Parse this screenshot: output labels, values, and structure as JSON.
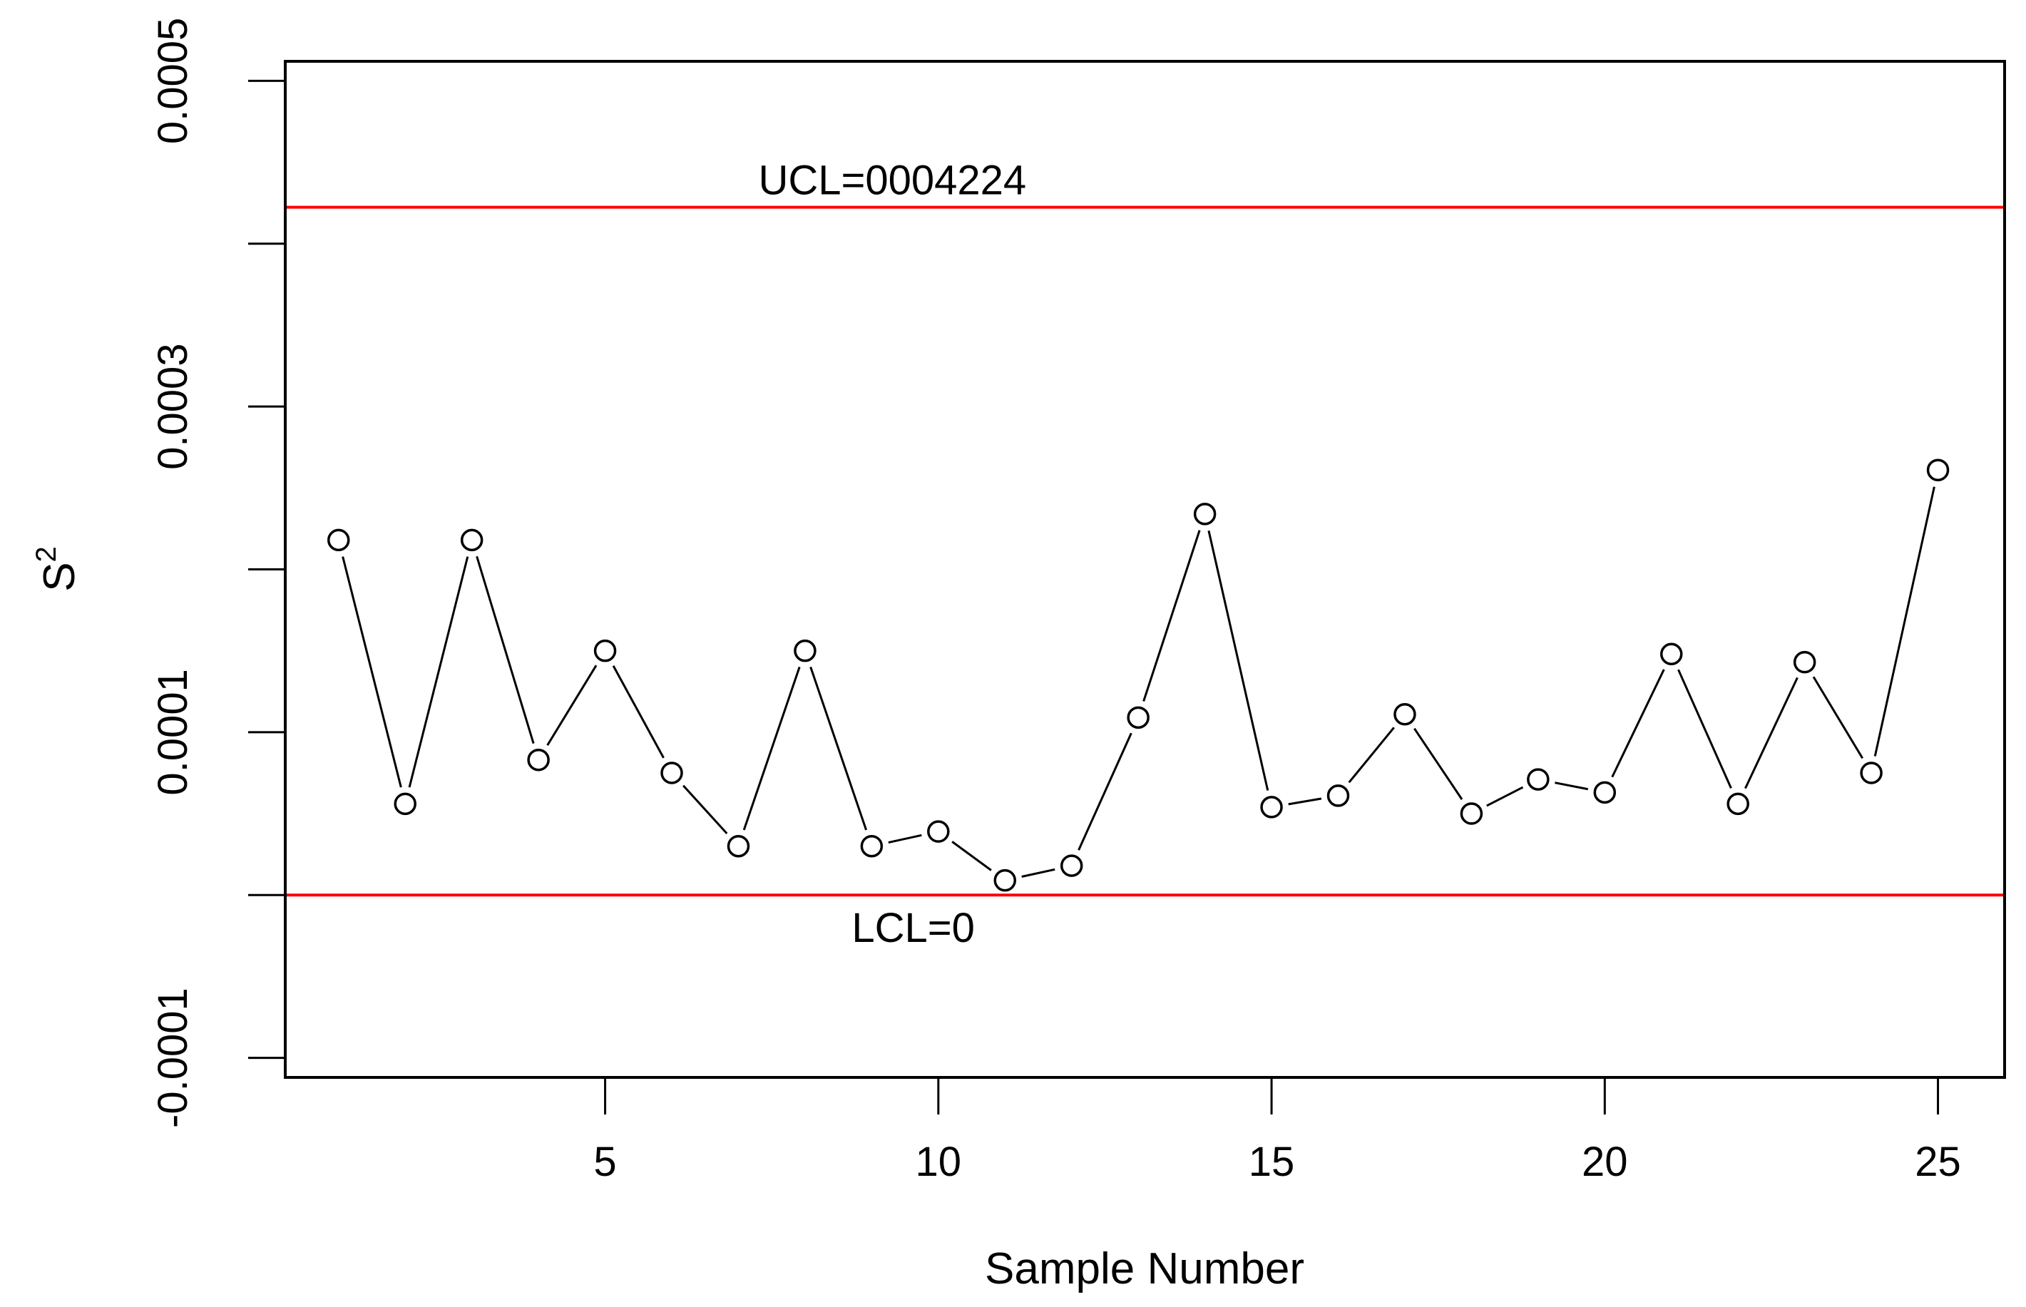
{
  "chart_data": {
    "type": "line",
    "title": "",
    "xlabel": "Sample Number",
    "ylabel": "S",
    "ylabel_superscript": "2",
    "xlim": [
      0.2,
      26.0
    ],
    "ylim": [
      -0.000112,
      0.000512
    ],
    "xticks": [
      {
        "value": 5,
        "label": "5"
      },
      {
        "value": 10,
        "label": "10"
      },
      {
        "value": 15,
        "label": "15"
      },
      {
        "value": 20,
        "label": "20"
      },
      {
        "value": 25,
        "label": "25"
      }
    ],
    "yticks": [
      {
        "value": -0.0001,
        "label": "-0.0001"
      },
      {
        "value": 0.0,
        "label": ""
      },
      {
        "value": 0.0001,
        "label": "0.0001"
      },
      {
        "value": 0.0002,
        "label": ""
      },
      {
        "value": 0.0003,
        "label": "0.0003"
      },
      {
        "value": 0.0004,
        "label": ""
      },
      {
        "value": 0.0005,
        "label": "0.0005"
      }
    ],
    "x": [
      1,
      2,
      3,
      4,
      5,
      6,
      7,
      8,
      9,
      10,
      11,
      12,
      13,
      14,
      15,
      16,
      17,
      18,
      19,
      20,
      21,
      22,
      23,
      24,
      25
    ],
    "values": [
      0.000218,
      5.6e-05,
      0.000218,
      8.3e-05,
      0.00015,
      7.5e-05,
      3e-05,
      0.00015,
      3e-05,
      3.9e-05,
      9e-06,
      1.8e-05,
      0.000109,
      0.000234,
      5.4e-05,
      6.1e-05,
      0.000111,
      5e-05,
      7.1e-05,
      6.3e-05,
      0.000148,
      5.6e-05,
      0.000143,
      7.5e-05,
      0.000261
    ],
    "control_lines": [
      {
        "name": "UCL",
        "value": 0.0004224,
        "label": "UCL=0004224",
        "label_x": 7.3,
        "label_position": "above",
        "color": "#ff0000"
      },
      {
        "name": "LCL",
        "value": 0.0,
        "label": "LCL=0",
        "label_x": 8.7,
        "label_position": "below",
        "color": "#ff0000"
      }
    ],
    "series_color": "#000000",
    "grid": false,
    "legend": "none"
  }
}
